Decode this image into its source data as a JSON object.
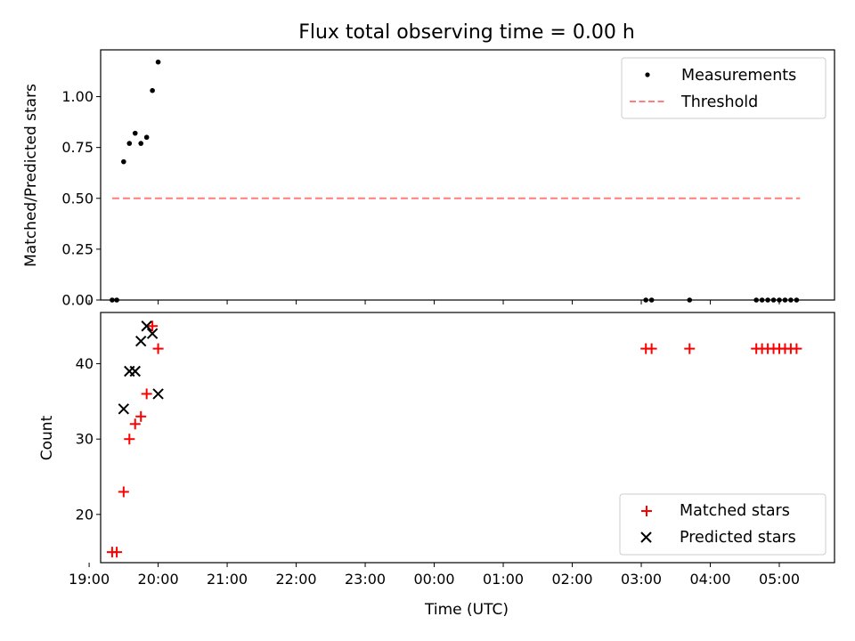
{
  "chart_data": [
    {
      "type": "scatter",
      "title": "Flux total observing time = 0.00 h",
      "xlabel": "",
      "ylabel": "Matched/Predicted stars",
      "ylim": [
        0.0,
        1.23
      ],
      "yticks": [
        0.0,
        0.25,
        0.5,
        0.75,
        1.0
      ],
      "ytick_labels": [
        "0.00",
        "0.25",
        "0.50",
        "0.75",
        "1.00"
      ],
      "xlim": [
        "19:10",
        "05:48"
      ],
      "legend": "top-right",
      "series": [
        {
          "name": "Measurements",
          "marker": "dot",
          "color": "#000000",
          "x": [
            "19:20",
            "19:24",
            "19:30",
            "19:35",
            "19:40",
            "19:45",
            "19:50",
            "19:55",
            "20:00",
            "03:04",
            "03:09",
            "03:42",
            "04:40",
            "04:45",
            "04:50",
            "04:55",
            "05:00",
            "05:05",
            "05:10",
            "05:15"
          ],
          "y": [
            0.0,
            0.0,
            0.68,
            0.77,
            0.82,
            0.77,
            0.8,
            1.03,
            1.17,
            0.0,
            0.0,
            0.0,
            0.0,
            0.0,
            0.0,
            0.0,
            0.0,
            0.0,
            0.0,
            0.0
          ]
        },
        {
          "name": "Threshold",
          "style": "dashed",
          "color": "#ff7f7f",
          "x": [
            "19:20",
            "05:18"
          ],
          "y": [
            0.5,
            0.5
          ]
        }
      ]
    },
    {
      "type": "scatter",
      "title": "",
      "xlabel": "Time (UTC)",
      "ylabel": "Count",
      "ylim": [
        13.6,
        46.8
      ],
      "yticks": [
        20,
        30,
        40
      ],
      "ytick_labels": [
        "20",
        "30",
        "40"
      ],
      "xlim": [
        "19:10",
        "05:48"
      ],
      "xticks": [
        "19:00",
        "20:00",
        "21:00",
        "22:00",
        "23:00",
        "00:00",
        "01:00",
        "02:00",
        "03:00",
        "04:00",
        "05:00"
      ],
      "legend": "lower-right",
      "series": [
        {
          "name": "Matched stars",
          "marker": "plus",
          "color": "#ff0000",
          "x": [
            "19:20",
            "19:24",
            "19:30",
            "19:35",
            "19:40",
            "19:45",
            "19:50",
            "19:55",
            "20:00",
            "03:04",
            "03:09",
            "03:42",
            "04:40",
            "04:45",
            "04:50",
            "04:55",
            "05:00",
            "05:05",
            "05:10",
            "05:15"
          ],
          "y": [
            15,
            15,
            23,
            30,
            32,
            33,
            36,
            45,
            42,
            42,
            42,
            42,
            42,
            42,
            42,
            42,
            42,
            42,
            42,
            42
          ]
        },
        {
          "name": "Predicted stars",
          "marker": "x",
          "color": "#000000",
          "x": [
            "19:30",
            "19:35",
            "19:40",
            "19:45",
            "19:50",
            "19:55",
            "20:00"
          ],
          "y": [
            34,
            39,
            39,
            43,
            45,
            44,
            36
          ]
        }
      ]
    }
  ]
}
